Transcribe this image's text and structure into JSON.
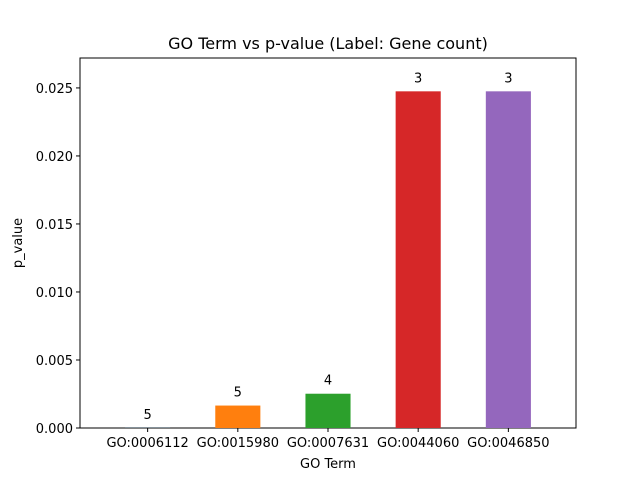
{
  "chart_data": {
    "type": "bar",
    "title": "GO Term vs p-value (Label: Gene count)",
    "xlabel": "GO Term",
    "ylabel": "p_value",
    "categories": [
      "GO:0006112",
      "GO:0015980",
      "GO:0007631",
      "GO:0044060",
      "GO:0046850"
    ],
    "values": [
      1e-05,
      0.00165,
      0.00252,
      0.02475,
      0.02475
    ],
    "bar_labels": [
      "5",
      "5",
      "4",
      "3",
      "3"
    ],
    "colors": [
      "#1f77b4",
      "#ff7f0e",
      "#2ca02c",
      "#d62728",
      "#9467bd"
    ],
    "ylim": [
      0,
      0.0272
    ],
    "yticks": [
      0.0,
      0.005,
      0.01,
      0.015,
      0.02,
      0.025
    ],
    "ytick_labels": [
      "0.000",
      "0.005",
      "0.010",
      "0.015",
      "0.020",
      "0.025"
    ],
    "grid": false,
    "legend": "none"
  }
}
